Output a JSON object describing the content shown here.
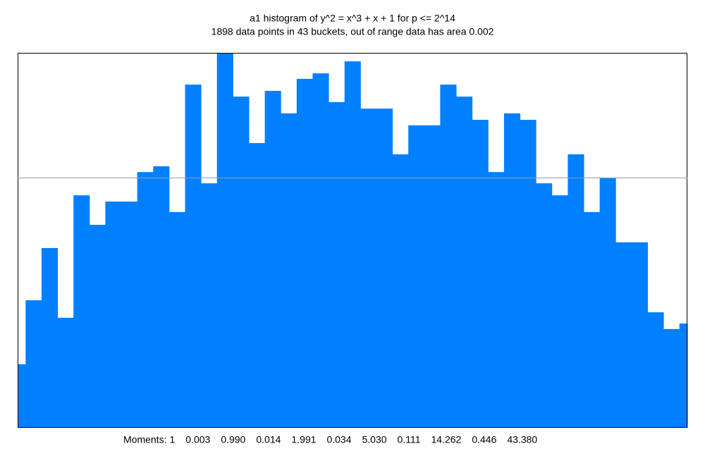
{
  "chart_data": {
    "type": "histogram",
    "title": "a1 histogram of y^2 = x^3 + x + 1 for p <= 2^14",
    "subtitle": "1898 data points in 43 buckets, out of range data has area 0.002",
    "bins": [
      -1,
      -0.9762,
      -0.9286,
      -0.881,
      -0.8333,
      -0.7857,
      -0.7381,
      -0.6905,
      -0.6429,
      -0.5952,
      -0.5476,
      -0.5,
      -0.4524,
      -0.4048,
      -0.3571,
      -0.3095,
      -0.2619,
      -0.2143,
      -0.1667,
      -0.119,
      -0.0714,
      -0.0238,
      0.0238,
      0.0714,
      0.119,
      0.1667,
      0.2143,
      0.2619,
      0.3095,
      0.3571,
      0.4048,
      0.4524,
      0.5,
      0.5476,
      0.5952,
      0.6429,
      0.6905,
      0.7381,
      0.7857,
      0.8333,
      0.881,
      0.9286,
      0.9762,
      1
    ],
    "values": [
      0.254,
      0.51,
      0.719,
      0.44,
      0.93,
      0.812,
      0.905,
      0.905,
      1.023,
      1.046,
      0.863,
      1.373,
      0.978,
      1.5,
      1.325,
      1.139,
      1.348,
      1.258,
      1.396,
      1.418,
      1.303,
      1.466,
      1.277,
      1.277,
      1.094,
      1.21,
      1.21,
      1.373,
      1.325,
      1.232,
      1.023,
      1.258,
      1.232,
      0.978,
      0.93,
      1.094,
      0.863,
      0.998,
      0.742,
      0.742,
      0.462,
      0.395,
      0.417
    ],
    "color": "#0080ff",
    "xlim": [
      -1,
      1
    ],
    "ylim": [
      0,
      1.5
    ],
    "reference_line": 1,
    "reference_color": "#999999",
    "moments_label": "Moments:",
    "moments": [
      "1",
      "0.003",
      "0.990",
      "0.014",
      "1.991",
      "0.034",
      "5.030",
      "0.111",
      "14.262",
      "0.446",
      "43.380"
    ]
  }
}
